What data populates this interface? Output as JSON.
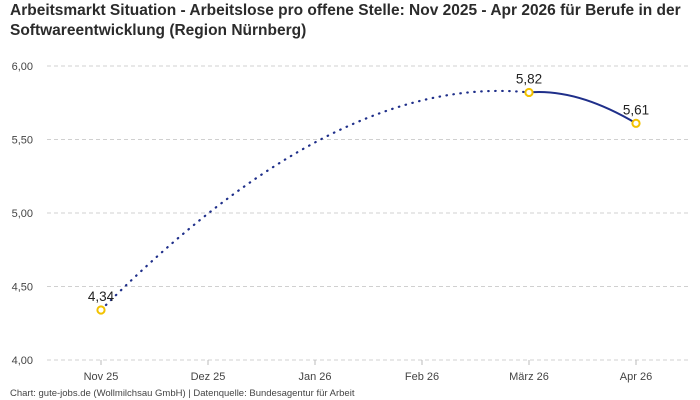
{
  "chart_data": {
    "type": "line",
    "title": "Arbeitsmarkt Situation - Arbeitslose pro offene Stelle: Nov 2025 - Apr 2026 für Berufe in der Softwareentwicklung (Region Nürnberg)",
    "categories": [
      "Nov 25",
      "Dez 25",
      "Jan 26",
      "Feb 26",
      "März 26",
      "Apr 26"
    ],
    "points": [
      {
        "x": "Nov 25",
        "y": 4.34,
        "label": "4,34"
      },
      {
        "x": "März 26",
        "y": 5.82,
        "label": "5,82"
      },
      {
        "x": "Apr 26",
        "y": 5.61,
        "label": "5,61"
      }
    ],
    "segments": [
      {
        "from": "Nov 25",
        "to": "März 26",
        "style": "dotted"
      },
      {
        "from": "März 26",
        "to": "Apr 26",
        "style": "solid"
      }
    ],
    "y_ticks": [
      "4,00",
      "4,50",
      "5,00",
      "5,50",
      "6,00"
    ],
    "ylim": [
      4.0,
      6.0
    ],
    "grid": "horizontal dashed",
    "colors": {
      "line": "#1f2f8a",
      "marker": "#f2c200",
      "grid": "#d0d0d0"
    }
  },
  "footer": "Chart: gute-jobs.de (Wollmilchsau GmbH) | Datenquelle: Bundesagentur für Arbeit"
}
